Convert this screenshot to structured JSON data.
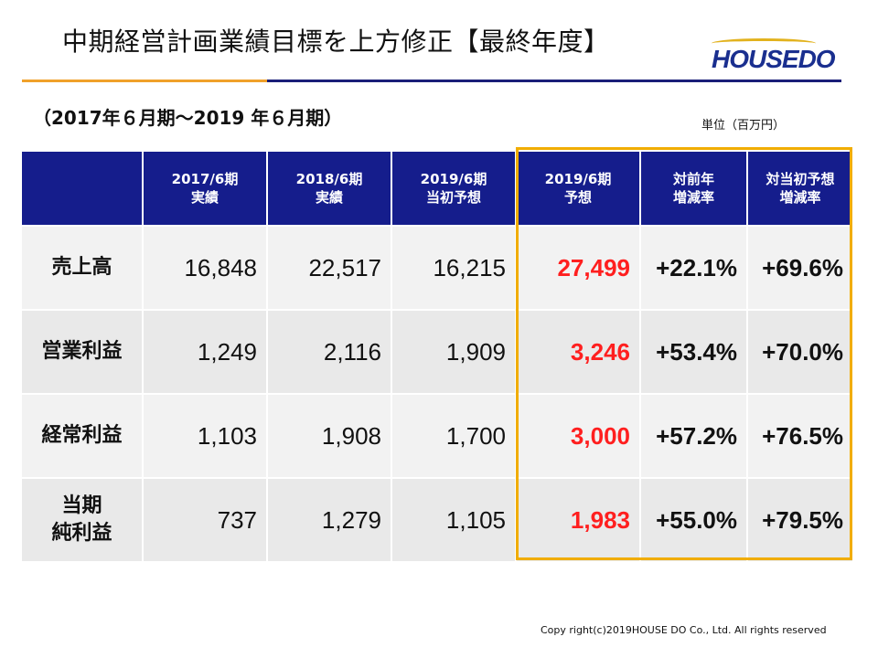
{
  "page": {
    "title": "中期経営計画業績目標を上方修正【最終年度】",
    "subtitle": "（2017年６月期～2019 年６月期）",
    "unit": "単位（百万円）",
    "copyright": "Copy right(c)2019HOUSE DO Co., Ltd. All rights reserved"
  },
  "logo": {
    "text": "HOUSEDO",
    "brand_color": "#1a2f8f",
    "accent_color": "#e2b21d"
  },
  "table": {
    "headers": [
      {
        "line1": "",
        "line2": ""
      },
      {
        "line1": "2017/6期",
        "line2": "実績"
      },
      {
        "line1": "2018/6期",
        "line2": "実績"
      },
      {
        "line1": "2019/6期",
        "line2": "当初予想"
      },
      {
        "line1": "2019/6期",
        "line2": "予想"
      },
      {
        "line1": "対前年",
        "line2": "増減率"
      },
      {
        "line1": "対当初予想",
        "line2": "増減率"
      }
    ],
    "rows": [
      {
        "label_line1": "売上高",
        "label_line2": "",
        "fy2017_actual": "16,848",
        "fy2018_actual": "22,517",
        "fy2019_initial": "16,215",
        "fy2019_forecast": "27,499",
        "yoy_change": "+22.1%",
        "vs_initial_change": "+69.6%"
      },
      {
        "label_line1": "営業利益",
        "label_line2": "",
        "fy2017_actual": "1,249",
        "fy2018_actual": "2,116",
        "fy2019_initial": "1,909",
        "fy2019_forecast": "3,246",
        "yoy_change": "+53.4%",
        "vs_initial_change": "+70.0%"
      },
      {
        "label_line1": "経常利益",
        "label_line2": "",
        "fy2017_actual": "1,103",
        "fy2018_actual": "1,908",
        "fy2019_initial": "1,700",
        "fy2019_forecast": "3,000",
        "yoy_change": "+57.2%",
        "vs_initial_change": "+76.5%"
      },
      {
        "label_line1": "当期",
        "label_line2": "純利益",
        "fy2017_actual": "737",
        "fy2018_actual": "1,279",
        "fy2019_initial": "1,105",
        "fy2019_forecast": "1,983",
        "yoy_change": "+55.0%",
        "vs_initial_change": "+79.5%"
      }
    ]
  },
  "colors": {
    "header_navy": "#151d8c",
    "forecast_red": "#ff1f1f",
    "highlight_gold": "#f1ad00",
    "rule_orange": "#f0a12a",
    "rule_navy": "#1a1e78"
  }
}
